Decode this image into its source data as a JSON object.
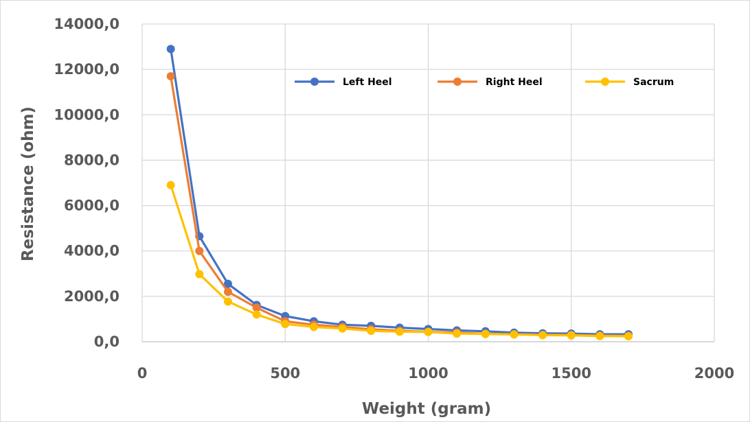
{
  "chart_data": {
    "type": "line",
    "title": "",
    "xlabel": "Weight (gram)",
    "ylabel": "Resistance (ohm)",
    "xlim": [
      0,
      2000
    ],
    "ylim": [
      0,
      14000
    ],
    "x_ticks": [
      0,
      500,
      1000,
      1500,
      2000
    ],
    "x_tick_labels": [
      "0",
      "500",
      "1000",
      "1500",
      "2000"
    ],
    "y_ticks": [
      0,
      2000,
      4000,
      6000,
      8000,
      10000,
      12000,
      14000
    ],
    "y_tick_labels": [
      "0,0",
      "2000,0",
      "4000,0",
      "6000,0",
      "8000,0",
      "10000,0",
      "12000,0",
      "14000,0"
    ],
    "grid": true,
    "legend_position": "top-right",
    "x": [
      100,
      200,
      300,
      400,
      500,
      600,
      700,
      800,
      900,
      1000,
      1100,
      1200,
      1300,
      1400,
      1500,
      1600,
      1700
    ],
    "series": [
      {
        "name": "Left Heel",
        "color": "#4472c4",
        "values": [
          12900,
          4650,
          2550,
          1620,
          1130,
          900,
          750,
          700,
          620,
          560,
          500,
          460,
          400,
          370,
          360,
          330,
          330
        ]
      },
      {
        "name": "Right Heel",
        "color": "#ed7d31",
        "values": [
          11700,
          4000,
          2200,
          1500,
          900,
          750,
          650,
          550,
          480,
          440,
          400,
          350,
          330,
          300,
          300,
          270,
          260
        ]
      },
      {
        "name": "Sacrum",
        "color": "#ffc000",
        "values": [
          6900,
          2980,
          1770,
          1200,
          780,
          650,
          580,
          480,
          440,
          430,
          360,
          340,
          320,
          290,
          280,
          250,
          240
        ]
      }
    ]
  }
}
